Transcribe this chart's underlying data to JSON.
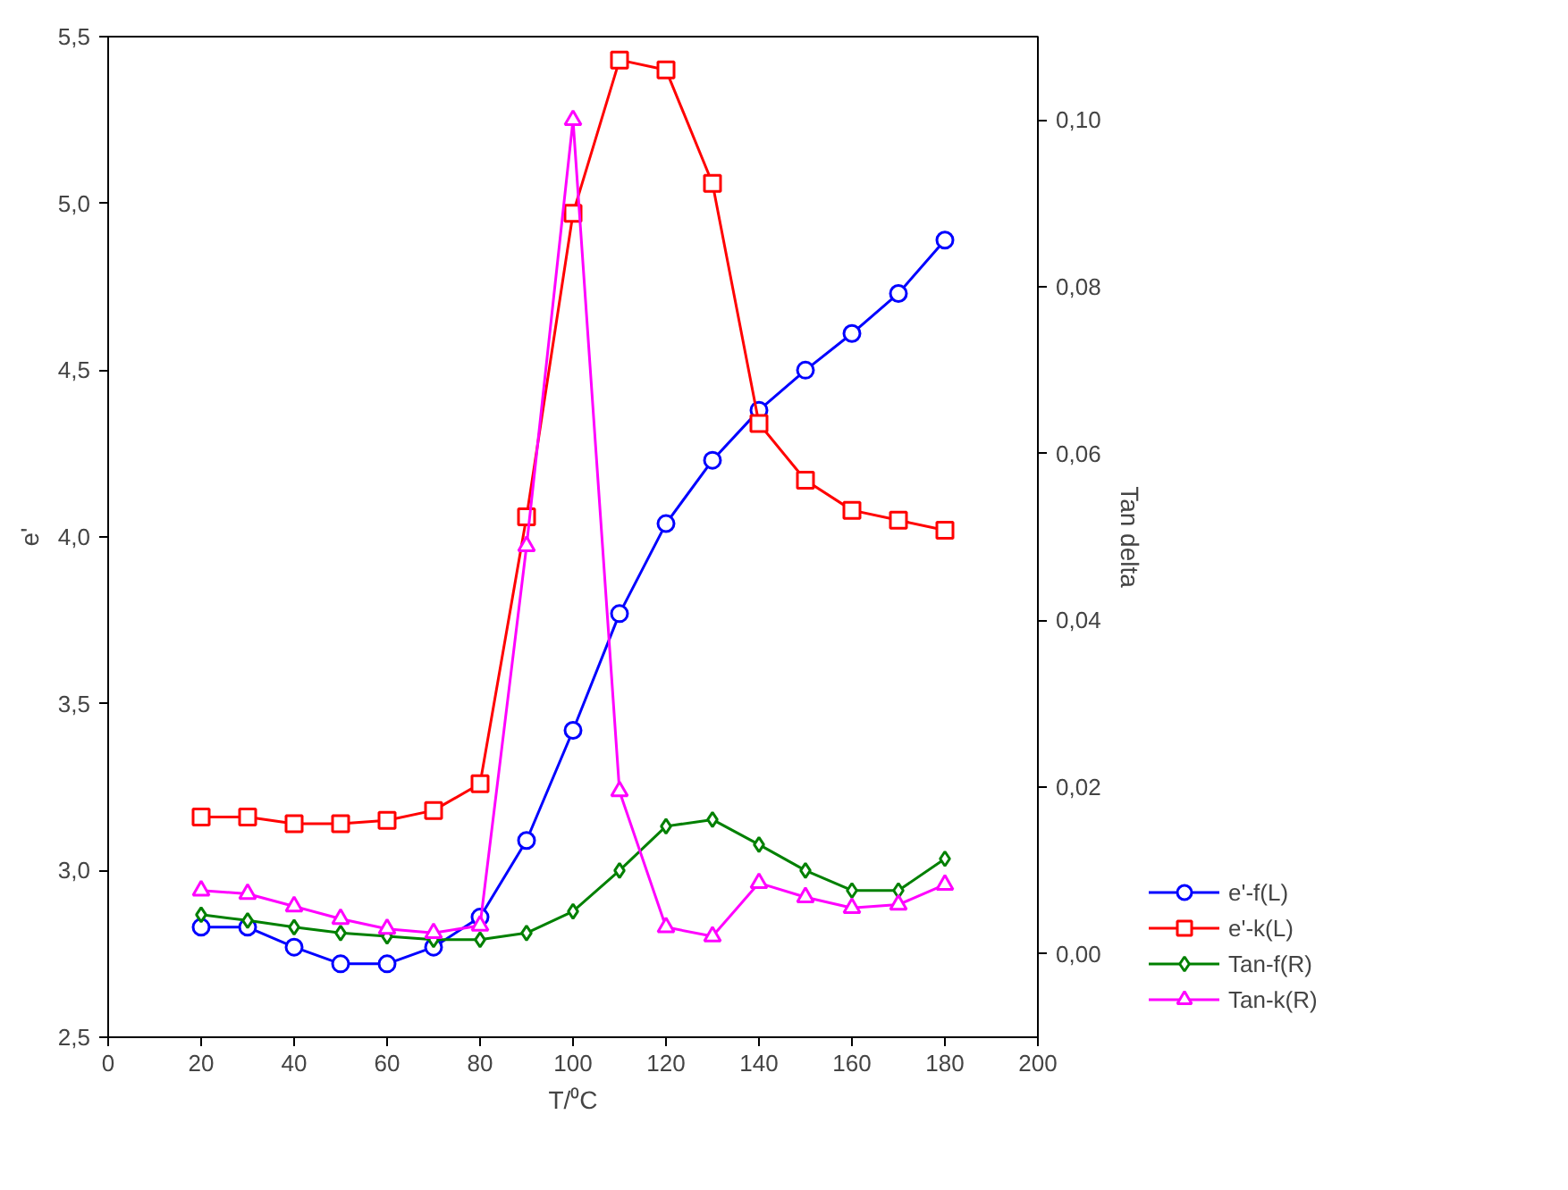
{
  "chart_data": {
    "type": "line",
    "xlabel": "T/⁰C",
    "ylabel": "e'",
    "y2label": "Tan delta",
    "x": [
      20,
      30,
      40,
      50,
      60,
      70,
      80,
      90,
      100,
      110,
      120,
      130,
      140,
      150,
      160,
      170,
      180
    ],
    "xlim": [
      0,
      200
    ],
    "xticks": [
      0,
      20,
      40,
      60,
      80,
      100,
      120,
      140,
      160,
      180,
      200
    ],
    "ylim": [
      2.5,
      5.5
    ],
    "yticks": [
      {
        "value": 2.5,
        "label": "2,5"
      },
      {
        "value": 3.0,
        "label": "3,0"
      },
      {
        "value": 3.5,
        "label": "3,5"
      },
      {
        "value": 4.0,
        "label": "4,0"
      },
      {
        "value": 4.5,
        "label": "4,5"
      },
      {
        "value": 5.0,
        "label": "5,0"
      },
      {
        "value": 5.5,
        "label": "5,5"
      }
    ],
    "y2lim": [
      -0.01,
      0.11
    ],
    "y2ticks": [
      {
        "value": 0.0,
        "label": "0,00"
      },
      {
        "value": 0.02,
        "label": "0,02"
      },
      {
        "value": 0.04,
        "label": "0,04"
      },
      {
        "value": 0.06,
        "label": "0,06"
      },
      {
        "value": 0.08,
        "label": "0,08"
      },
      {
        "value": 0.1,
        "label": "0,10"
      }
    ],
    "grid": false,
    "legend": "bottom right",
    "line_style": "solid",
    "series": [
      {
        "name": "e'-f(L)",
        "color": "#0000ff",
        "marker": "circle",
        "values": [
          2.83,
          2.83,
          2.77,
          2.72,
          2.72,
          2.77,
          2.86,
          3.09,
          3.42,
          3.77,
          4.04,
          4.23,
          4.38,
          4.5,
          4.61,
          4.73,
          4.89
        ]
      },
      {
        "name": "e'-k(L)",
        "color": "#ff0000",
        "marker": "square",
        "values": [
          3.16,
          3.16,
          3.14,
          3.14,
          3.15,
          3.18,
          3.26,
          4.06,
          4.97,
          5.43,
          5.4,
          5.06,
          4.34,
          4.17,
          4.08,
          4.05,
          4.02
        ]
      },
      {
        "name": "Tan-f(R)",
        "color": "#008000",
        "marker": "diamond",
        "axis": "y2",
        "values": [
          0.0047,
          0.004,
          0.0032,
          0.0025,
          0.0021,
          0.0017,
          0.0017,
          0.0025,
          0.0051,
          0.01,
          0.0153,
          0.0161,
          0.0131,
          0.01,
          0.0076,
          0.0076,
          0.0114
        ]
      },
      {
        "name": "Tan-k(R)",
        "color": "#ff00ff",
        "marker": "triangle",
        "axis": "y2",
        "values": [
          0.0076,
          0.0072,
          0.0057,
          0.0042,
          0.003,
          0.0025,
          0.0034,
          0.0489,
          0.1,
          0.0195,
          0.0032,
          0.0021,
          0.0085,
          0.0068,
          0.0055,
          0.0059,
          0.0083
        ]
      }
    ]
  }
}
